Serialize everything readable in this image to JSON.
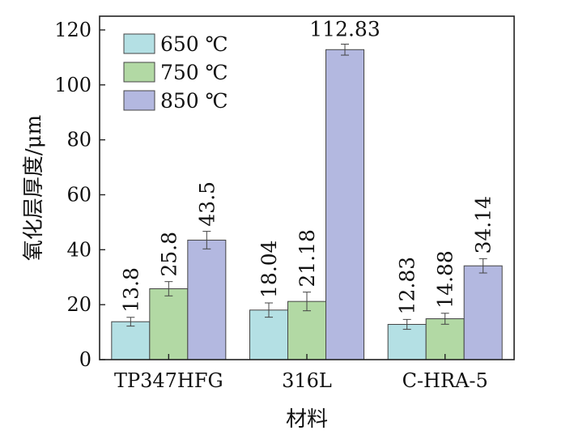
{
  "chart_data": {
    "type": "bar",
    "title": "",
    "xlabel": "材料",
    "ylabel": "氧化层厚度/μm",
    "categories": [
      "TP347HFG",
      "316L",
      "C-HRA-5"
    ],
    "ylim": [
      0,
      125
    ],
    "yticks": [
      0,
      20,
      40,
      60,
      80,
      100,
      120
    ],
    "legend_position": "top-left",
    "series": [
      {
        "name": "650 ℃",
        "color": "#b4e0e4",
        "values": [
          13.8,
          18.04,
          12.83
        ],
        "labels": [
          "13.8",
          "18.04",
          "12.83"
        ],
        "errors": [
          1.6,
          2.6,
          1.8
        ]
      },
      {
        "name": "750 ℃",
        "color": "#b2d9a4",
        "values": [
          25.8,
          21.18,
          14.88
        ],
        "labels": [
          "25.8",
          "21.18",
          "14.88"
        ],
        "errors": [
          2.6,
          3.4,
          2.0
        ]
      },
      {
        "name": "850 ℃",
        "color": "#b3b8e0",
        "values": [
          43.5,
          112.83,
          34.14
        ],
        "labels": [
          "43.5",
          "112.83",
          "34.14"
        ],
        "errors": [
          3.2,
          2.0,
          2.6
        ]
      }
    ],
    "grid": false
  }
}
